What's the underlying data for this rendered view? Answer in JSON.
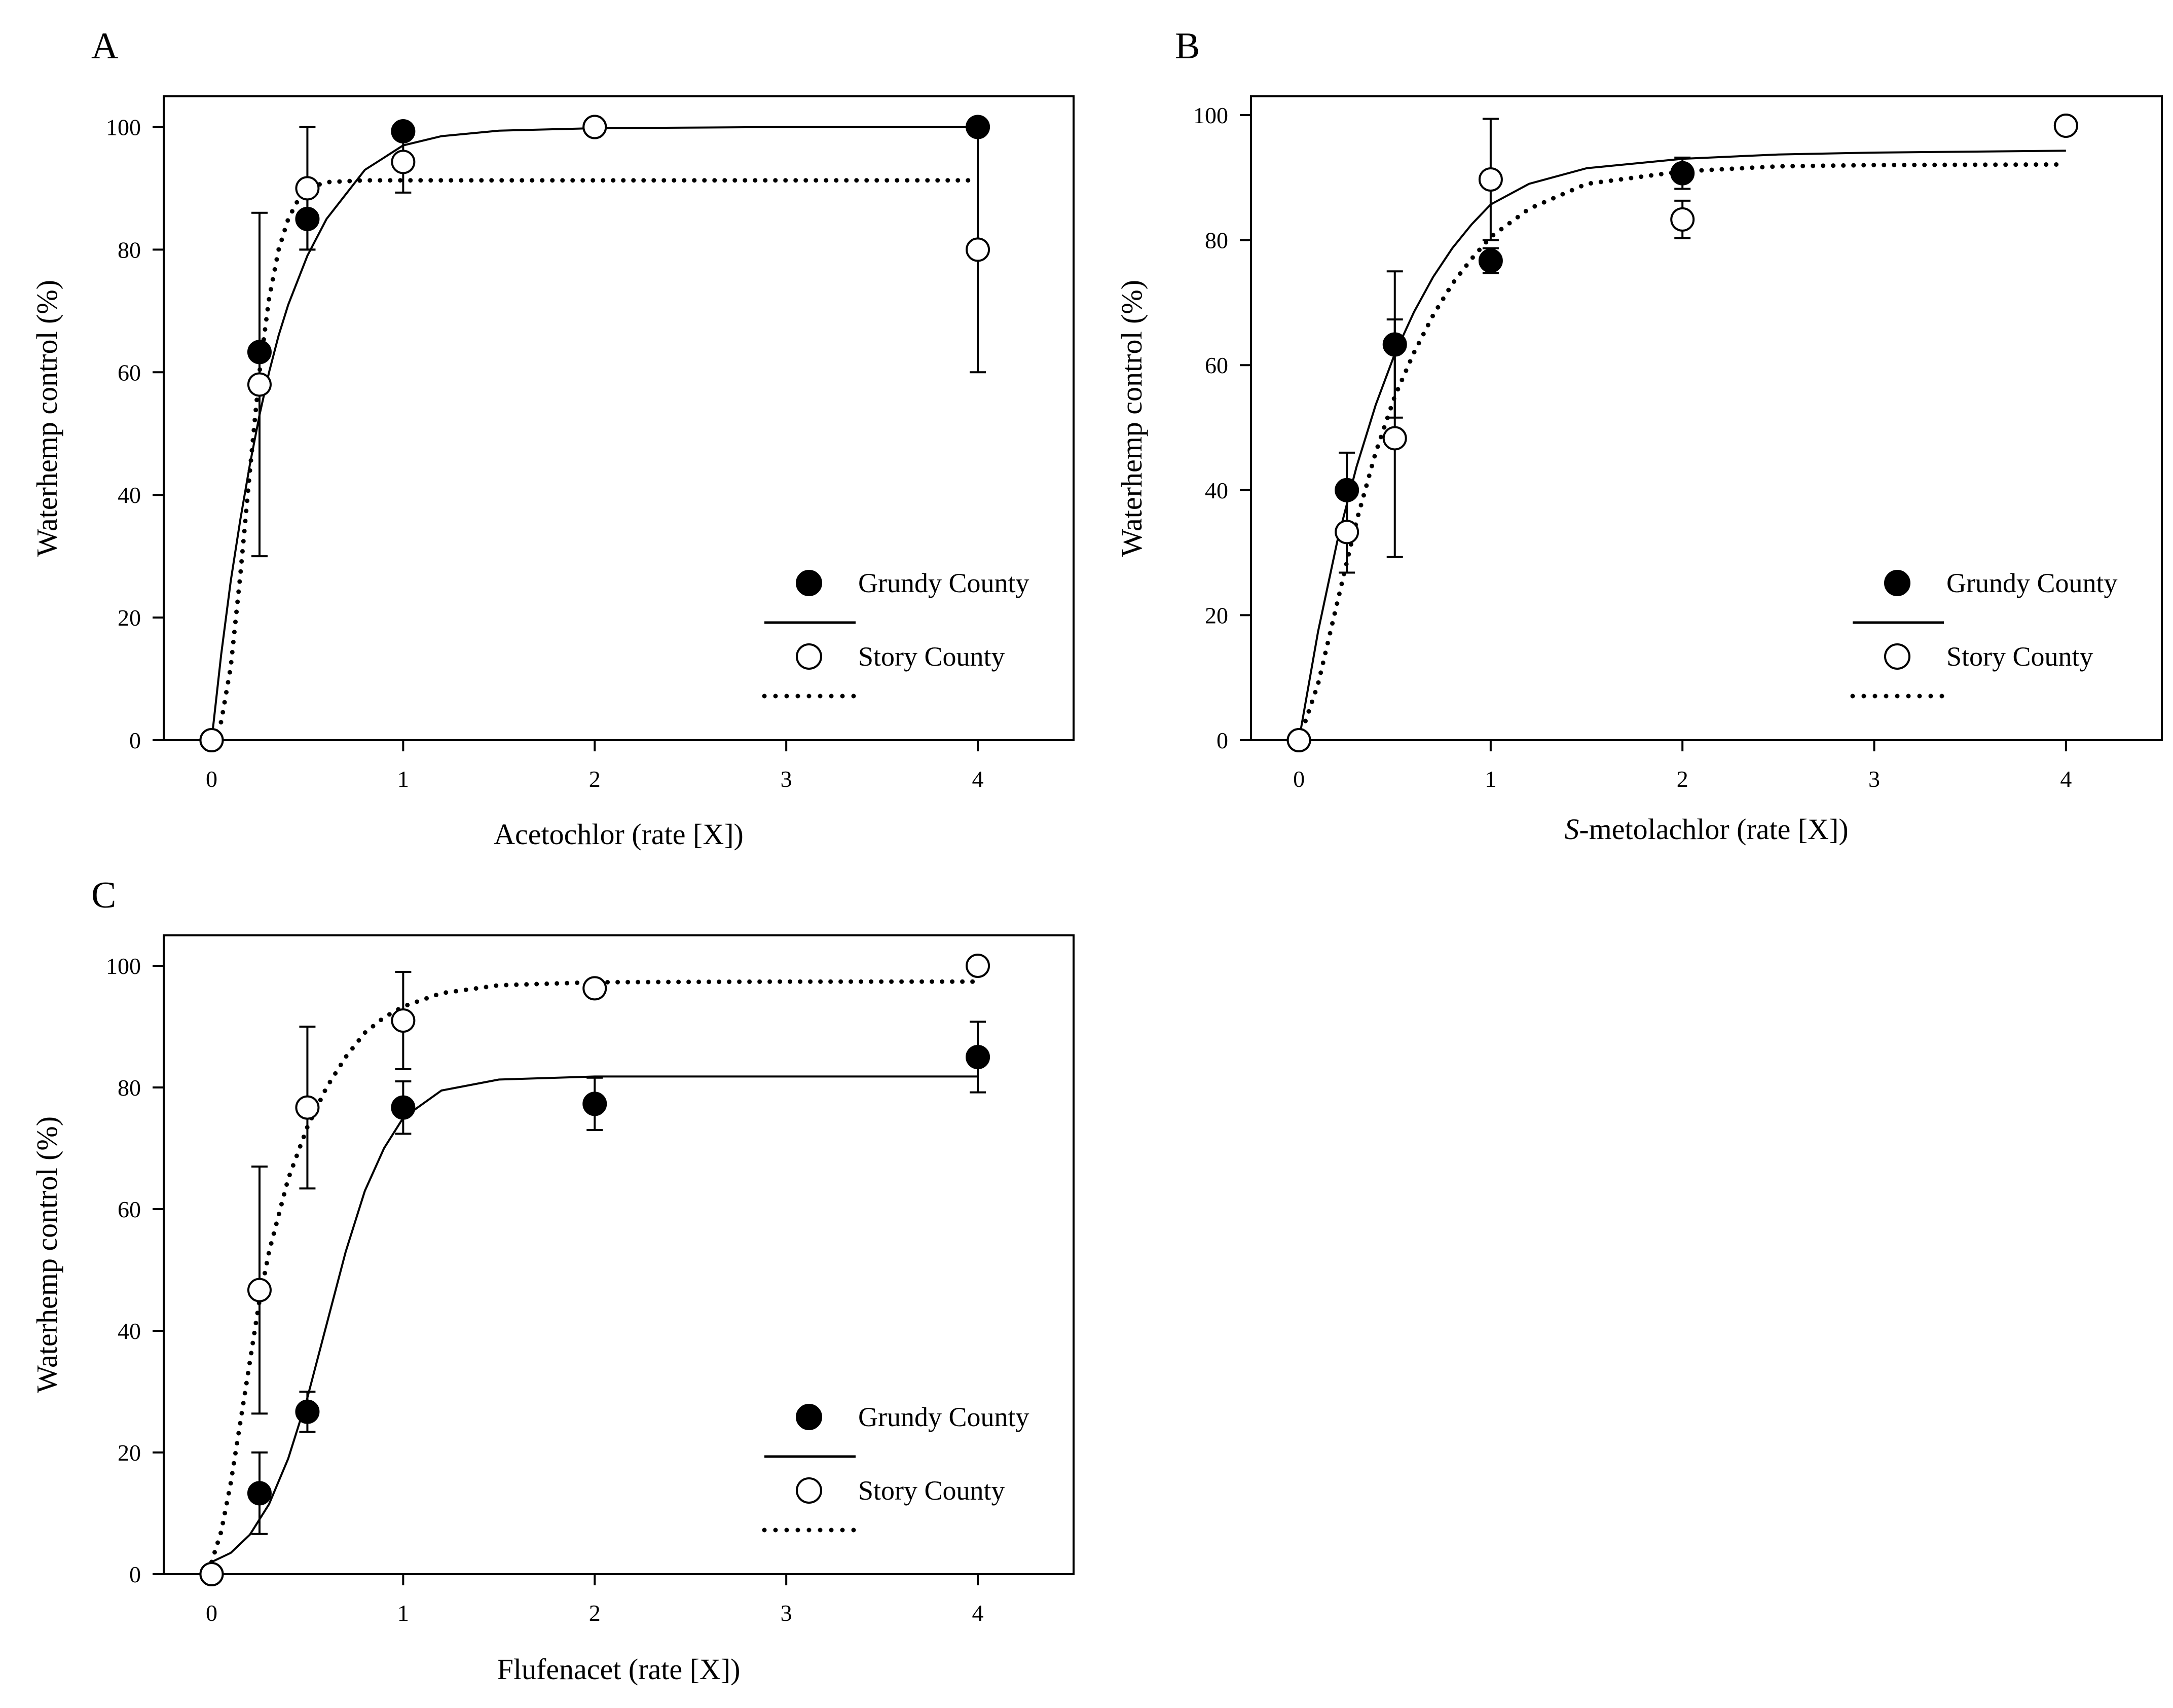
{
  "colors": {
    "ink": "#000000",
    "open_fill": "#ffffff",
    "background": "#ffffff"
  },
  "legend": {
    "series": [
      {
        "name": "Grundy County",
        "marker": "filled-circle",
        "line": "solid"
      },
      {
        "name": "Story County",
        "marker": "open-circle",
        "line": "dotted"
      }
    ]
  },
  "chart_data": [
    {
      "panel": "A",
      "type": "scatter",
      "title": "",
      "xlabel": "Acetochlor (rate [X])",
      "xlabel_italic_prefix": "",
      "ylabel": "Waterhemp control (%)",
      "xlim": [
        -0.25,
        4.5
      ],
      "ylim": [
        0,
        105
      ],
      "xticks": [
        0,
        1,
        2,
        3,
        4
      ],
      "yticks": [
        0,
        20,
        40,
        60,
        80,
        100
      ],
      "legend_position": "lower-right",
      "series": [
        {
          "name": "Grundy County",
          "marker": "filled",
          "line": "solid",
          "x": [
            0,
            0.25,
            0.5,
            1,
            2,
            4
          ],
          "y": [
            0,
            63.3,
            85,
            99.3,
            100,
            100
          ],
          "err": [
            0,
            0,
            5,
            0,
            0,
            0
          ],
          "curve": [
            [
              0,
              0
            ],
            [
              0.05,
              14
            ],
            [
              0.1,
              26
            ],
            [
              0.15,
              36
            ],
            [
              0.2,
              45
            ],
            [
              0.25,
              53
            ],
            [
              0.3,
              60
            ],
            [
              0.35,
              66
            ],
            [
              0.4,
              71
            ],
            [
              0.5,
              79
            ],
            [
              0.6,
              85
            ],
            [
              0.7,
              89
            ],
            [
              0.8,
              93
            ],
            [
              0.9,
              95
            ],
            [
              1,
              97
            ],
            [
              1.2,
              98.5
            ],
            [
              1.5,
              99.4
            ],
            [
              2,
              99.8
            ],
            [
              3,
              100
            ],
            [
              4,
              100
            ]
          ]
        },
        {
          "name": "Story County",
          "marker": "open",
          "line": "dotted",
          "x": [
            0,
            0.25,
            0.5,
            1,
            2,
            4
          ],
          "y": [
            0,
            58,
            90,
            94.3,
            100,
            80
          ],
          "err": [
            0,
            28,
            10,
            5,
            0,
            20
          ],
          "curve": [
            [
              0,
              0
            ],
            [
              0.05,
              3
            ],
            [
              0.1,
              12
            ],
            [
              0.15,
              27
            ],
            [
              0.2,
              44
            ],
            [
              0.25,
              60
            ],
            [
              0.3,
              72
            ],
            [
              0.35,
              80
            ],
            [
              0.4,
              85
            ],
            [
              0.45,
              88
            ],
            [
              0.5,
              90
            ],
            [
              0.6,
              91
            ],
            [
              0.8,
              91.3
            ],
            [
              1,
              91.3
            ],
            [
              2,
              91.3
            ],
            [
              3,
              91.3
            ],
            [
              4,
              91.3
            ]
          ]
        }
      ]
    },
    {
      "panel": "B",
      "type": "scatter",
      "title": "",
      "xlabel": "-metolachlor (rate [X])",
      "xlabel_italic_prefix": "S",
      "ylabel": "Waterhemp control (%)",
      "xlim": [
        -0.25,
        4.5
      ],
      "ylim": [
        0,
        103
      ],
      "xticks": [
        0,
        1,
        2,
        3,
        4
      ],
      "yticks": [
        0,
        20,
        40,
        60,
        80,
        100
      ],
      "legend_position": "lower-right",
      "series": [
        {
          "name": "Grundy County",
          "marker": "filled",
          "line": "solid",
          "x": [
            0,
            0.25,
            0.5,
            1,
            2,
            4
          ],
          "y": [
            0,
            40,
            63.3,
            76.7,
            90.7,
            98.3
          ],
          "err": [
            0,
            6,
            11.7,
            2,
            2.5,
            0
          ],
          "curve": [
            [
              0,
              0
            ],
            [
              0.1,
              17.4
            ],
            [
              0.2,
              31.8
            ],
            [
              0.3,
              43.7
            ],
            [
              0.4,
              53.6
            ],
            [
              0.5,
              61.8
            ],
            [
              0.6,
              68.5
            ],
            [
              0.7,
              74.1
            ],
            [
              0.8,
              78.7
            ],
            [
              0.9,
              82.5
            ],
            [
              1,
              85.7
            ],
            [
              1.2,
              89
            ],
            [
              1.5,
              91.5
            ],
            [
              2,
              93
            ],
            [
              2.5,
              93.7
            ],
            [
              3,
              94
            ],
            [
              4,
              94.3
            ]
          ]
        },
        {
          "name": "Story County",
          "marker": "open",
          "line": "dotted",
          "x": [
            0,
            0.25,
            0.5,
            1,
            2,
            4
          ],
          "y": [
            0,
            33.3,
            48.3,
            89.7,
            83.3,
            98.3
          ],
          "err": [
            0,
            6.5,
            19,
            9.7,
            3,
            0
          ],
          "curve": [
            [
              0,
              0
            ],
            [
              0.1,
              9
            ],
            [
              0.2,
              22
            ],
            [
              0.3,
              35
            ],
            [
              0.4,
              46
            ],
            [
              0.5,
              55
            ],
            [
              0.6,
              62
            ],
            [
              0.7,
              68
            ],
            [
              0.8,
              73
            ],
            [
              0.9,
              77
            ],
            [
              1,
              80.5
            ],
            [
              1.2,
              85
            ],
            [
              1.5,
              89
            ],
            [
              2,
              91
            ],
            [
              2.5,
              91.8
            ],
            [
              3,
              92
            ],
            [
              4,
              92.1
            ]
          ]
        }
      ]
    },
    {
      "panel": "C",
      "type": "scatter",
      "title": "",
      "xlabel": "Flufenacet (rate [X])",
      "xlabel_italic_prefix": "",
      "ylabel": "Waterhemp control (%)",
      "xlim": [
        -0.25,
        4.5
      ],
      "ylim": [
        0,
        105
      ],
      "xticks": [
        0,
        1,
        2,
        3,
        4
      ],
      "yticks": [
        0,
        20,
        40,
        60,
        80,
        100
      ],
      "legend_position": "lower-right",
      "series": [
        {
          "name": "Grundy County",
          "marker": "filled",
          "line": "solid",
          "x": [
            0,
            0.25,
            0.5,
            1,
            2,
            4
          ],
          "y": [
            0,
            13.3,
            26.7,
            76.7,
            77.3,
            85
          ],
          "err": [
            0,
            6.7,
            3.3,
            4.3,
            4.3,
            5.8
          ],
          "curve": [
            [
              0,
              2
            ],
            [
              0.1,
              3.5
            ],
            [
              0.2,
              6.5
            ],
            [
              0.3,
              11.5
            ],
            [
              0.4,
              19
            ],
            [
              0.5,
              29
            ],
            [
              0.6,
              41
            ],
            [
              0.7,
              53
            ],
            [
              0.8,
              63
            ],
            [
              0.9,
              70
            ],
            [
              1,
              75
            ],
            [
              1.2,
              79.5
            ],
            [
              1.5,
              81.3
            ],
            [
              2,
              81.8
            ],
            [
              3,
              81.8
            ],
            [
              4,
              81.8
            ]
          ]
        },
        {
          "name": "Story County",
          "marker": "open",
          "line": "dotted",
          "x": [
            0,
            0.25,
            0.5,
            1,
            2,
            4
          ],
          "y": [
            0,
            46.7,
            76.7,
            91,
            96.3,
            100
          ],
          "err": [
            0,
            20.3,
            13.3,
            8,
            0,
            0
          ],
          "curve": [
            [
              0,
              2
            ],
            [
              0.05,
              7
            ],
            [
              0.1,
              15
            ],
            [
              0.15,
              25
            ],
            [
              0.2,
              35
            ],
            [
              0.25,
              45
            ],
            [
              0.3,
              53
            ],
            [
              0.4,
              65
            ],
            [
              0.5,
              73.5
            ],
            [
              0.6,
              80
            ],
            [
              0.7,
              85
            ],
            [
              0.8,
              89
            ],
            [
              0.9,
              91.5
            ],
            [
              1,
              93.3
            ],
            [
              1.2,
              95.5
            ],
            [
              1.5,
              96.8
            ],
            [
              2,
              97.3
            ],
            [
              3,
              97.4
            ],
            [
              4,
              97.4
            ]
          ]
        }
      ]
    }
  ]
}
